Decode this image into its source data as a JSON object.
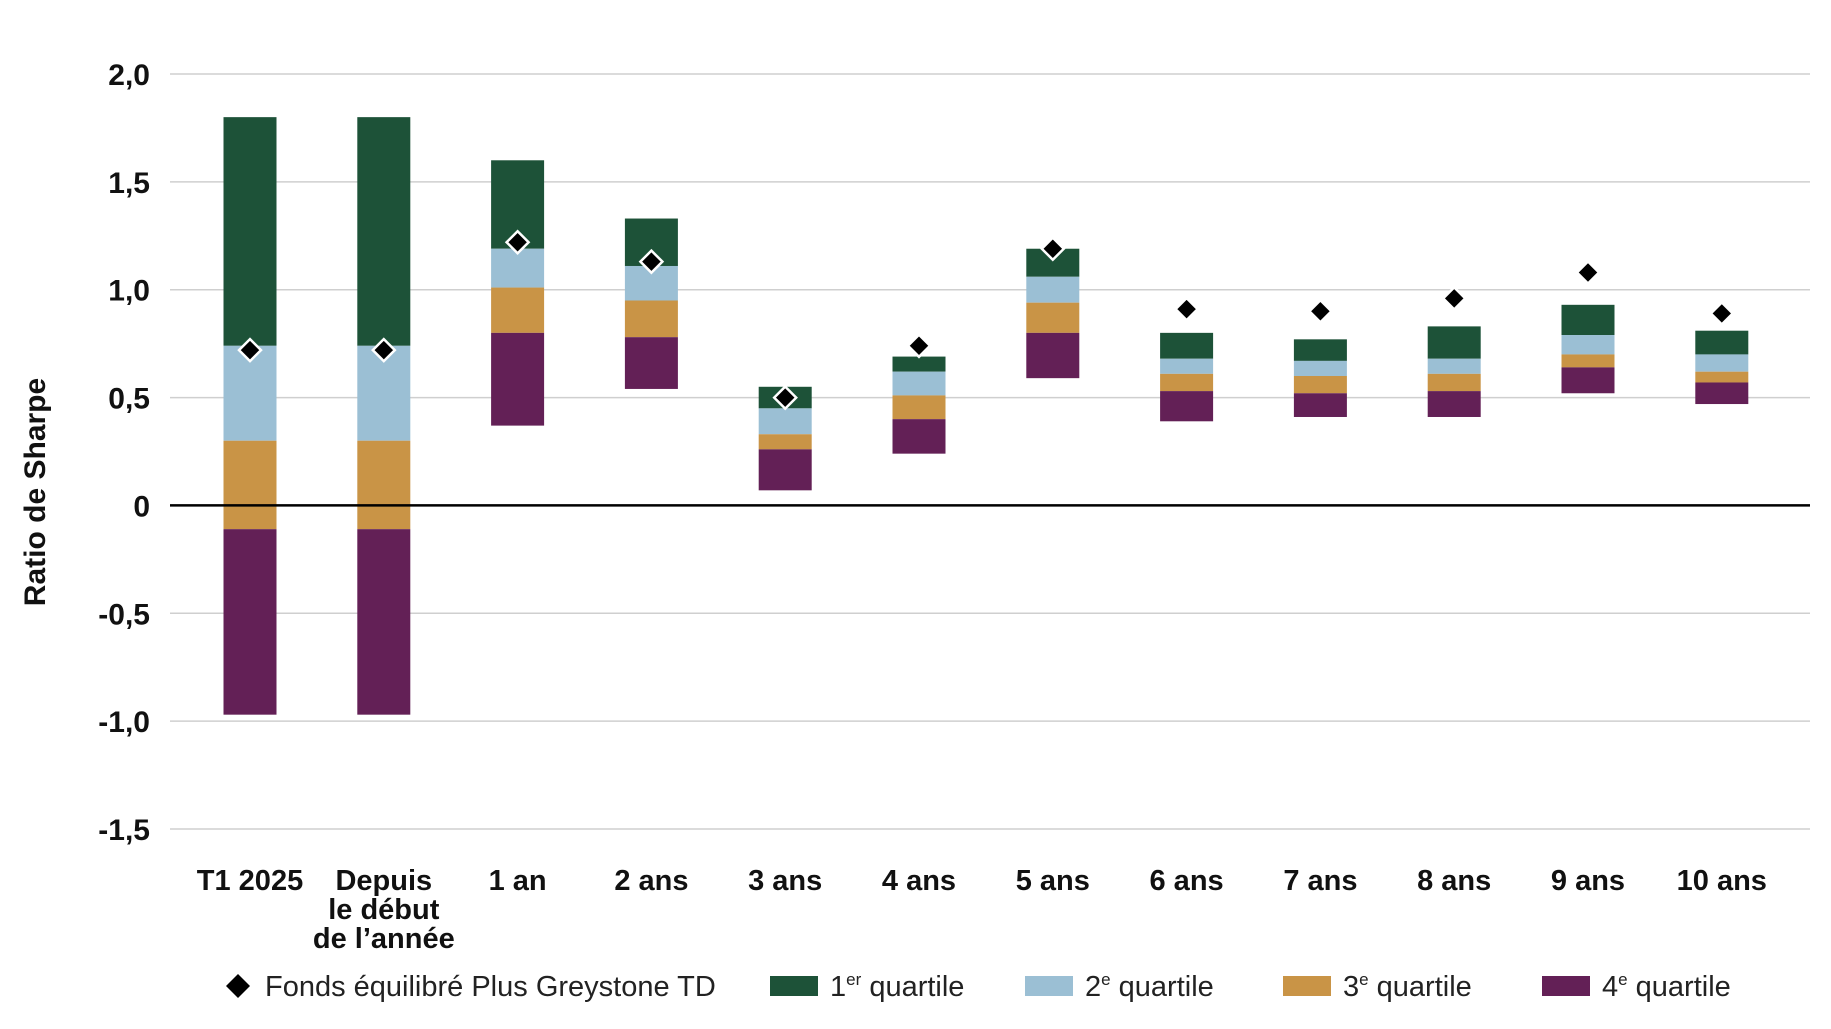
{
  "chart_data": {
    "type": "bar",
    "ylabel": "Ratio de Sharpe",
    "ylim": [
      -1.5,
      2.0
    ],
    "yticks": [
      {
        "value": 2.0,
        "label": "2,0"
      },
      {
        "value": 1.5,
        "label": "1,5"
      },
      {
        "value": 1.0,
        "label": "1,0"
      },
      {
        "value": 0.5,
        "label": "0,5"
      },
      {
        "value": 0.0,
        "label": "0"
      },
      {
        "value": -0.5,
        "label": "-0,5"
      },
      {
        "value": -1.0,
        "label": "-1,0"
      },
      {
        "value": -1.5,
        "label": "-1,5"
      }
    ],
    "grid": true,
    "legend_position": "bottom",
    "categories": [
      [
        "T1 2025"
      ],
      [
        "Depuis",
        "le début",
        "de l’année"
      ],
      [
        "1 an"
      ],
      [
        "2 ans"
      ],
      [
        "3 ans"
      ],
      [
        "4 ans"
      ],
      [
        "5 ans"
      ],
      [
        "6 ans"
      ],
      [
        "7 ans"
      ],
      [
        "8 ans"
      ],
      [
        "9 ans"
      ],
      [
        "10 ans"
      ]
    ],
    "quartile_series": [
      {
        "name_num": "1",
        "name_sup": "er",
        "name_rest": " quartile",
        "color": "#1d5238",
        "bottom": [
          0.74,
          0.74,
          1.19,
          1.11,
          0.45,
          0.62,
          1.06,
          0.68,
          0.67,
          0.68,
          0.79,
          0.7
        ],
        "top": [
          1.8,
          1.8,
          1.6,
          1.33,
          0.55,
          0.69,
          1.19,
          0.8,
          0.77,
          0.83,
          0.93,
          0.81
        ]
      },
      {
        "name_num": "2",
        "name_sup": "e",
        "name_rest": " quartile",
        "color": "#9bbfd4",
        "bottom": [
          0.3,
          0.3,
          1.01,
          0.95,
          0.33,
          0.51,
          0.94,
          0.61,
          0.6,
          0.61,
          0.7,
          0.62
        ],
        "top": [
          0.74,
          0.74,
          1.19,
          1.11,
          0.45,
          0.62,
          1.06,
          0.68,
          0.67,
          0.68,
          0.79,
          0.7
        ]
      },
      {
        "name_num": "3",
        "name_sup": "e",
        "name_rest": " quartile",
        "color": "#c99446",
        "bottom": [
          -0.11,
          -0.11,
          0.8,
          0.78,
          0.26,
          0.4,
          0.8,
          0.53,
          0.52,
          0.53,
          0.64,
          0.57
        ],
        "top": [
          0.3,
          0.3,
          1.01,
          0.95,
          0.33,
          0.51,
          0.94,
          0.61,
          0.6,
          0.61,
          0.7,
          0.62
        ]
      },
      {
        "name_num": "4",
        "name_sup": "e",
        "name_rest": " quartile",
        "color": "#632056",
        "bottom": [
          -0.97,
          -0.97,
          0.37,
          0.54,
          0.07,
          0.24,
          0.59,
          0.39,
          0.41,
          0.41,
          0.52,
          0.47
        ],
        "top": [
          -0.11,
          -0.11,
          0.8,
          0.78,
          0.26,
          0.4,
          0.8,
          0.53,
          0.52,
          0.53,
          0.64,
          0.57
        ]
      }
    ],
    "fund_series": {
      "name": "Fonds équilibré Plus Greystone TD",
      "color": "#000000",
      "values": [
        0.72,
        0.72,
        1.22,
        1.13,
        0.5,
        0.74,
        1.19,
        0.91,
        0.9,
        0.96,
        1.08,
        0.89
      ]
    }
  }
}
